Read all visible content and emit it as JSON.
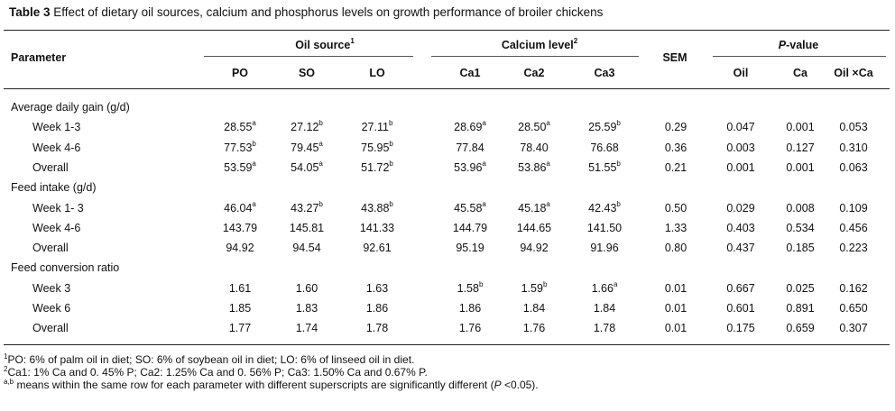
{
  "caption": {
    "label": "Table 3",
    "text": " Effect of dietary oil sources, calcium and phosphorus levels on growth performance of broiler chickens"
  },
  "header": {
    "parameter": "Parameter",
    "oil_group": "Oil source",
    "oil_group_sup": "1",
    "ca_group": "Calcium level",
    "ca_group_sup": "2",
    "sem": "SEM",
    "p_italic": "P",
    "p_rest": "-value",
    "cols": [
      "PO",
      "SO",
      "LO",
      "Ca1",
      "Ca2",
      "Ca3"
    ],
    "pcols": [
      "Oil",
      "Ca",
      "Oil ×Ca"
    ]
  },
  "rows": [
    {
      "type": "section",
      "label": "Average daily gain (g/d)"
    },
    {
      "type": "data",
      "label": "Week 1-3",
      "vals": [
        [
          "28.55",
          "a"
        ],
        [
          "27.12",
          "b"
        ],
        [
          "27.11",
          "b"
        ],
        [
          "28.69",
          "a"
        ],
        [
          "28.50",
          "a"
        ],
        [
          "25.59",
          "b"
        ]
      ],
      "sem": "0.29",
      "p": [
        "0.047",
        "0.001",
        "0.053"
      ]
    },
    {
      "type": "data",
      "label": "Week 4-6",
      "vals": [
        [
          "77.53",
          "b"
        ],
        [
          "79.45",
          "a"
        ],
        [
          "75.95",
          "b"
        ],
        [
          "77.84",
          ""
        ],
        [
          "78.40",
          ""
        ],
        [
          "76.68",
          ""
        ]
      ],
      "sem": "0.36",
      "p": [
        "0.003",
        "0.127",
        "0.310"
      ]
    },
    {
      "type": "data",
      "label": "Overall",
      "vals": [
        [
          "53.59",
          "a"
        ],
        [
          "54.05",
          "a"
        ],
        [
          "51.72",
          "b"
        ],
        [
          "53.96",
          "a"
        ],
        [
          "53.86",
          "a"
        ],
        [
          "51.55",
          "b"
        ]
      ],
      "sem": "0.21",
      "p": [
        "0.001",
        "0.001",
        "0.063"
      ]
    },
    {
      "type": "section",
      "label": "Feed intake (g/d)"
    },
    {
      "type": "data",
      "label": "Week 1- 3",
      "vals": [
        [
          "46.04",
          "a"
        ],
        [
          "43.27",
          "b"
        ],
        [
          "43.88",
          "b"
        ],
        [
          "45.58",
          "a"
        ],
        [
          "45.18",
          "a"
        ],
        [
          "42.43",
          "b"
        ]
      ],
      "sem": "0.50",
      "p": [
        "0.029",
        "0.008",
        "0.109"
      ]
    },
    {
      "type": "data",
      "label": "Week 4-6",
      "vals": [
        [
          "143.79",
          ""
        ],
        [
          "145.81",
          ""
        ],
        [
          "141.33",
          ""
        ],
        [
          "144.79",
          ""
        ],
        [
          "144.65",
          ""
        ],
        [
          "141.50",
          ""
        ]
      ],
      "sem": "1.33",
      "p": [
        "0.403",
        "0.534",
        "0.456"
      ]
    },
    {
      "type": "data",
      "label": "Overall",
      "vals": [
        [
          "94.92",
          ""
        ],
        [
          "94.54",
          ""
        ],
        [
          "92.61",
          ""
        ],
        [
          "95.19",
          ""
        ],
        [
          "94.92",
          ""
        ],
        [
          "91.96",
          ""
        ]
      ],
      "sem": "0.80",
      "p": [
        "0.437",
        "0.185",
        "0.223"
      ]
    },
    {
      "type": "section",
      "label": "Feed conversion ratio"
    },
    {
      "type": "data",
      "label": "Week 3",
      "vals": [
        [
          "1.61",
          ""
        ],
        [
          "1.60",
          ""
        ],
        [
          "1.63",
          ""
        ],
        [
          "1.58",
          "b"
        ],
        [
          "1.59",
          "b"
        ],
        [
          "1.66",
          "a"
        ]
      ],
      "sem": "0.01",
      "p": [
        "0.667",
        "0.025",
        "0.162"
      ]
    },
    {
      "type": "data",
      "label": "Week 6",
      "vals": [
        [
          "1.85",
          ""
        ],
        [
          "1.83",
          ""
        ],
        [
          "1.86",
          ""
        ],
        [
          "1.86",
          ""
        ],
        [
          "1.84",
          ""
        ],
        [
          "1.84",
          ""
        ]
      ],
      "sem": "0.01",
      "p": [
        "0.601",
        "0.891",
        "0.650"
      ]
    },
    {
      "type": "data",
      "label": "Overall",
      "vals": [
        [
          "1.77",
          ""
        ],
        [
          "1.74",
          ""
        ],
        [
          "1.78",
          ""
        ],
        [
          "1.76",
          ""
        ],
        [
          "1.76",
          ""
        ],
        [
          "1.78",
          ""
        ]
      ],
      "sem": "0.01",
      "p": [
        "0.175",
        "0.659",
        "0.307"
      ]
    }
  ],
  "footnotes": [
    {
      "sup": "1",
      "text": "PO: 6% of palm oil in diet; SO: 6% of soybean oil in diet; LO: 6% of linseed oil in diet."
    },
    {
      "sup": "2",
      "text": "Ca1: 1% Ca and 0. 45% P; Ca2: 1.25% Ca and 0. 56% P; Ca3: 1.50% Ca and 0.67% P."
    },
    {
      "sup": "a,b",
      "text": " means within the same row for each parameter with different superscripts are significantly different (",
      "italic": "P",
      "tail": " <0.05)."
    }
  ]
}
